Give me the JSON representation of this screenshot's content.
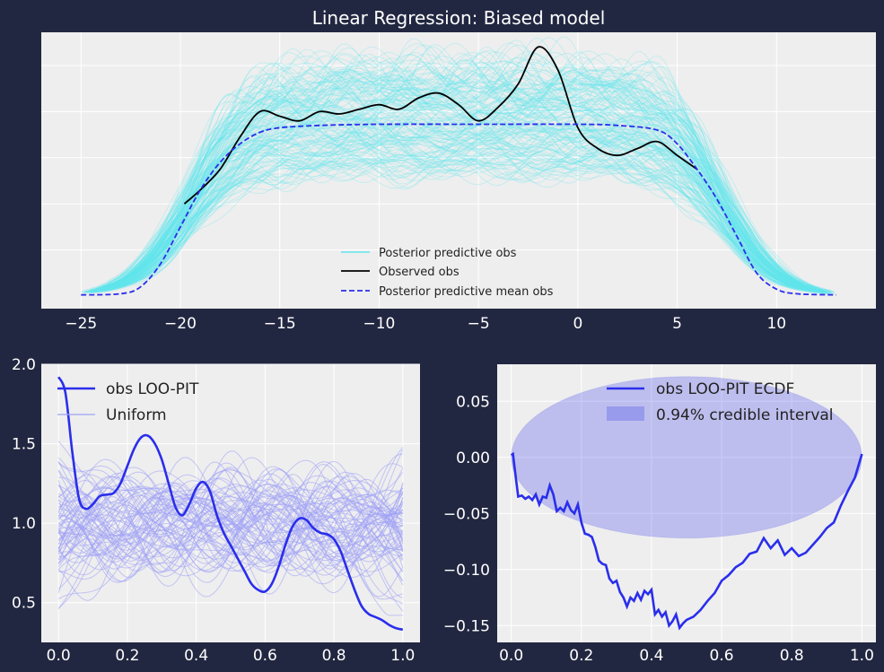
{
  "colors": {
    "background": "#222741",
    "panel": "#eeeeee",
    "grid": "#ffffff",
    "cyan": "#62e6ee",
    "observed": "#000000",
    "blue": "#2a2eec",
    "lightblue": "#9fa1f5"
  },
  "chart_data": [
    {
      "type": "line",
      "title": "Linear Regression: Biased model",
      "xlim": [
        -27,
        15
      ],
      "xticks": [
        "−25",
        "−20",
        "−15",
        "−10",
        "−5",
        "0",
        "5",
        "10"
      ],
      "xtick_values": [
        -25,
        -20,
        -15,
        -10,
        -5,
        0,
        5,
        10
      ],
      "grid": true,
      "legend_placement": "lower-center",
      "legend": [
        "Posterior predictive obs",
        "Observed obs",
        "Posterior predictive mean obs"
      ],
      "series": [
        {
          "name": "Posterior predictive obs",
          "style": "many thin translucent lines"
        },
        {
          "name": "Observed obs",
          "x": [
            -19.8,
            -19,
            -18,
            -17,
            -16,
            -15,
            -14,
            -13,
            -12,
            -11,
            -10,
            -9,
            -8,
            -7,
            -6,
            -5,
            -4,
            -3,
            -2,
            -1,
            0,
            1,
            2,
            3,
            4,
            5,
            6
          ],
          "y": [
            0.4,
            0.46,
            0.55,
            0.69,
            0.8,
            0.78,
            0.76,
            0.8,
            0.79,
            0.81,
            0.83,
            0.81,
            0.86,
            0.88,
            0.83,
            0.76,
            0.82,
            0.92,
            1.08,
            0.98,
            0.73,
            0.64,
            0.61,
            0.64,
            0.67,
            0.61,
            0.55
          ]
        },
        {
          "name": "Posterior predictive mean obs",
          "x": [
            -25,
            -23,
            -22,
            -21,
            -20,
            -19,
            -18,
            -17,
            -16,
            -15,
            -13,
            -10,
            -5,
            0,
            2,
            4,
            5,
            6,
            7,
            8,
            9,
            10,
            11,
            13
          ],
          "y": [
            0.005,
            0.01,
            0.04,
            0.14,
            0.3,
            0.46,
            0.58,
            0.66,
            0.71,
            0.73,
            0.74,
            0.745,
            0.745,
            0.745,
            0.74,
            0.72,
            0.66,
            0.55,
            0.42,
            0.26,
            0.1,
            0.03,
            0.01,
            0.005
          ]
        }
      ]
    },
    {
      "type": "line",
      "xlim": [
        -0.05,
        1.05
      ],
      "ylim": [
        0.25,
        2.0
      ],
      "xticks": [
        "0.0",
        "0.2",
        "0.4",
        "0.6",
        "0.8",
        "1.0"
      ],
      "xtick_values": [
        0,
        0.2,
        0.4,
        0.6,
        0.8,
        1.0
      ],
      "yticks": [
        "0.5",
        "1.0",
        "1.5",
        "2.0"
      ],
      "ytick_values": [
        0.5,
        1.0,
        1.5,
        2.0
      ],
      "grid": true,
      "legend_placement": "upper-left",
      "legend": [
        "obs LOO-PIT",
        "Uniform"
      ],
      "series": [
        {
          "name": "obs LOO-PIT",
          "x": [
            0,
            0.02,
            0.04,
            0.06,
            0.08,
            0.1,
            0.12,
            0.14,
            0.16,
            0.18,
            0.2,
            0.22,
            0.24,
            0.26,
            0.28,
            0.3,
            0.32,
            0.34,
            0.36,
            0.38,
            0.4,
            0.42,
            0.44,
            0.46,
            0.48,
            0.5,
            0.52,
            0.54,
            0.56,
            0.58,
            0.6,
            0.62,
            0.64,
            0.66,
            0.68,
            0.7,
            0.72,
            0.74,
            0.76,
            0.78,
            0.8,
            0.82,
            0.84,
            0.86,
            0.88,
            0.9,
            0.92,
            0.94,
            0.96,
            0.98,
            1.0
          ],
          "y": [
            1.92,
            1.82,
            1.45,
            1.15,
            1.09,
            1.12,
            1.17,
            1.18,
            1.19,
            1.25,
            1.36,
            1.47,
            1.54,
            1.55,
            1.5,
            1.4,
            1.25,
            1.1,
            1.05,
            1.12,
            1.22,
            1.26,
            1.2,
            1.05,
            0.94,
            0.86,
            0.78,
            0.7,
            0.62,
            0.58,
            0.57,
            0.62,
            0.73,
            0.87,
            0.98,
            1.03,
            1.02,
            0.97,
            0.94,
            0.93,
            0.9,
            0.82,
            0.7,
            0.58,
            0.48,
            0.43,
            0.41,
            0.39,
            0.36,
            0.34,
            0.33
          ]
        },
        {
          "name": "Uniform",
          "style": "many thin translucent lines"
        }
      ]
    },
    {
      "type": "line",
      "xlim": [
        -0.04,
        1.04
      ],
      "ylim": [
        -0.165,
        0.083
      ],
      "xticks": [
        "0.0",
        "0.2",
        "0.4",
        "0.6",
        "0.8",
        "1.0"
      ],
      "xtick_values": [
        0,
        0.2,
        0.4,
        0.6,
        0.8,
        1.0
      ],
      "yticks": [
        "0.05",
        "0.00",
        "−0.05",
        "−0.10",
        "−0.15"
      ],
      "ytick_values": [
        0.05,
        0.0,
        -0.05,
        -0.1,
        -0.15
      ],
      "grid": true,
      "legend_placement": "upper-right",
      "legend": [
        "obs LOO-PIT ECDF",
        "0.94% credible interval"
      ],
      "credible_band": {
        "x_center": 0.5,
        "y_center": 0.0,
        "half_width": 0.5,
        "half_height": 0.072
      },
      "series": [
        {
          "name": "obs LOO-PIT ECDF",
          "x": [
            0,
            0.005,
            0.01,
            0.02,
            0.03,
            0.04,
            0.05,
            0.06,
            0.07,
            0.08,
            0.09,
            0.1,
            0.11,
            0.12,
            0.13,
            0.14,
            0.15,
            0.16,
            0.17,
            0.18,
            0.19,
            0.2,
            0.21,
            0.22,
            0.23,
            0.24,
            0.25,
            0.26,
            0.27,
            0.28,
            0.29,
            0.3,
            0.31,
            0.32,
            0.33,
            0.34,
            0.35,
            0.36,
            0.37,
            0.38,
            0.39,
            0.4,
            0.41,
            0.42,
            0.43,
            0.44,
            0.45,
            0.46,
            0.47,
            0.48,
            0.49,
            0.5,
            0.52,
            0.54,
            0.56,
            0.58,
            0.6,
            0.62,
            0.64,
            0.66,
            0.68,
            0.7,
            0.72,
            0.74,
            0.76,
            0.78,
            0.8,
            0.82,
            0.84,
            0.86,
            0.88,
            0.9,
            0.92,
            0.94,
            0.96,
            0.98,
            1.0
          ],
          "y": [
            0.002,
            0.003,
            -0.01,
            -0.035,
            -0.034,
            -0.037,
            -0.035,
            -0.038,
            -0.033,
            -0.042,
            -0.035,
            -0.036,
            -0.025,
            -0.033,
            -0.048,
            -0.045,
            -0.048,
            -0.04,
            -0.047,
            -0.05,
            -0.042,
            -0.058,
            -0.068,
            -0.069,
            -0.071,
            -0.08,
            -0.092,
            -0.095,
            -0.096,
            -0.108,
            -0.112,
            -0.11,
            -0.12,
            -0.125,
            -0.133,
            -0.125,
            -0.128,
            -0.121,
            -0.127,
            -0.119,
            -0.122,
            -0.118,
            -0.14,
            -0.136,
            -0.142,
            -0.138,
            -0.15,
            -0.146,
            -0.14,
            -0.152,
            -0.148,
            -0.145,
            -0.142,
            -0.136,
            -0.128,
            -0.121,
            -0.11,
            -0.105,
            -0.098,
            -0.094,
            -0.086,
            -0.084,
            -0.072,
            -0.081,
            -0.074,
            -0.087,
            -0.081,
            -0.088,
            -0.085,
            -0.078,
            -0.071,
            -0.063,
            -0.058,
            -0.043,
            -0.03,
            -0.018,
            0.003
          ]
        }
      ]
    }
  ]
}
